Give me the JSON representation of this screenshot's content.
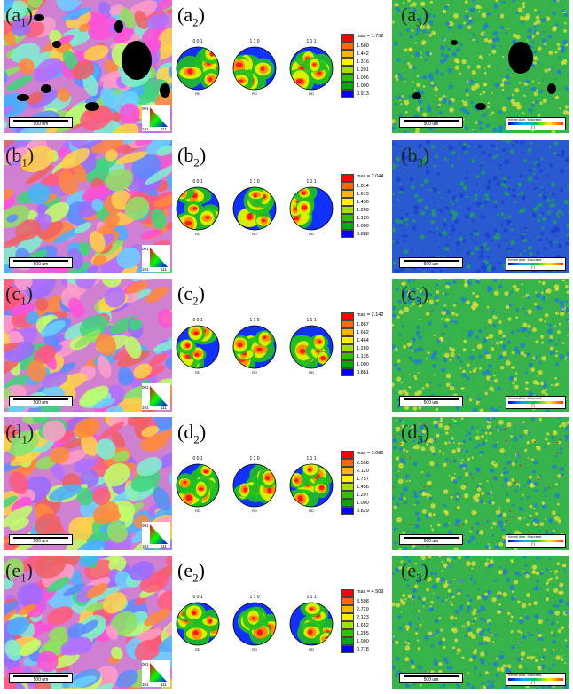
{
  "rows": [
    {
      "id": "a",
      "ipf_label": {
        "letter": "(a",
        "sub": "1",
        "close": ")"
      },
      "pf_label": {
        "letter": "(a",
        "sub": "2",
        "close": ")"
      },
      "kam_label": {
        "letter": "(a",
        "sub": "3",
        "close": ")"
      },
      "ipf_scale": "500 um",
      "kam_scale": "500 um",
      "legend": {
        "max": "max = 1.732",
        "values": [
          "1.580",
          "1.442",
          "1.316",
          "1.201",
          "1.096",
          "1.000",
          "0.913"
        ]
      },
      "pore_color": "#000000"
    },
    {
      "id": "b",
      "ipf_label": {
        "letter": "(b",
        "sub": "1",
        "close": ")"
      },
      "pf_label": {
        "letter": "(b",
        "sub": "2",
        "close": ")"
      },
      "kam_label": {
        "letter": "(b",
        "sub": "3",
        "close": ")"
      },
      "ipf_scale": "500 um",
      "kam_scale": "500 um",
      "legend": {
        "max": "max = 2.044",
        "values": [
          "1.814",
          "1.610",
          "1.430",
          "1.269",
          "1.126",
          "1.000",
          "0.888"
        ]
      }
    },
    {
      "id": "c",
      "ipf_label": {
        "letter": "(c",
        "sub": "1",
        "close": ")"
      },
      "pf_label": {
        "letter": "(c",
        "sub": "2",
        "close": ")"
      },
      "kam_label": {
        "letter": "(c",
        "sub": "3",
        "close": ")"
      },
      "ipf_scale": "500 um",
      "kam_scale": "500 um",
      "legend": {
        "max": "max = 2.142",
        "values": [
          "1.887",
          "1.662",
          "1.464",
          "1.289",
          "1.135",
          "1.000",
          "0.881"
        ]
      }
    },
    {
      "id": "d",
      "ipf_label": {
        "letter": "(d",
        "sub": "1",
        "close": ")"
      },
      "pf_label": {
        "letter": "(d",
        "sub": "2",
        "close": ")"
      },
      "kam_label": {
        "letter": "(d",
        "sub": "3",
        "close": ")"
      },
      "ipf_scale": "500 um",
      "kam_scale": "500 um",
      "legend": {
        "max": "max = 3.086",
        "values": [
          "2.558",
          "2.120",
          "1.757",
          "1.456",
          "1.207",
          "1.000",
          "0.829"
        ]
      }
    },
    {
      "id": "e",
      "ipf_label": {
        "letter": "(e",
        "sub": "1",
        "close": ")"
      },
      "pf_label": {
        "letter": "(e",
        "sub": "2",
        "close": ")"
      },
      "kam_label": {
        "letter": "(e",
        "sub": "3",
        "close": ")"
      },
      "ipf_scale": "500 um",
      "kam_scale": "500 um",
      "legend": {
        "max": "max = 4.509",
        "values": [
          "3.508",
          "2.729",
          "2.123",
          "1.652",
          "1.285",
          "1.000",
          "0.778"
        ]
      }
    }
  ],
  "pole_titles": [
    "0 0 1",
    "1 1 0",
    "1 1 1"
  ],
  "pole_foot": "RD",
  "pole_side": "TD",
  "ipf_key": {
    "top": "001",
    "left": "101",
    "right": "111"
  },
  "kam_legend": {
    "title": "Kernel Aver. Misorient.",
    "unit": "[°]",
    "min": "0",
    "max": "5"
  },
  "colors": {
    "legend_scale": [
      "#ff0000",
      "#ff6a00",
      "#ffb400",
      "#fff000",
      "#a6e000",
      "#2fc000",
      "#00a800",
      "#0000ff"
    ],
    "kam_base": "#38b24a",
    "kam_low": "#1a3fd0",
    "kam_high": "#e6e23a"
  }
}
